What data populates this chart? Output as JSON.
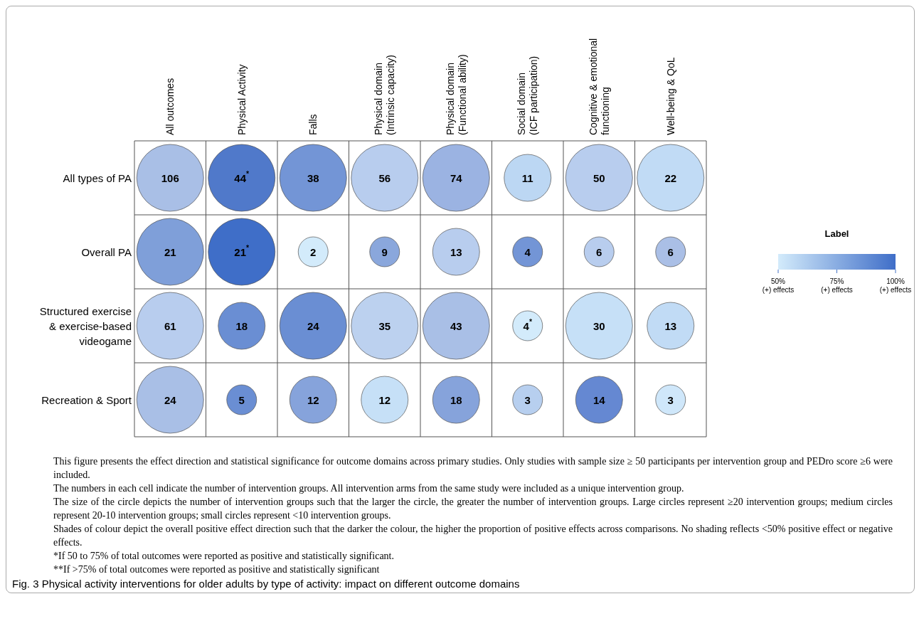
{
  "chart_data": {
    "type": "heatmap",
    "categories": [
      "All outcomes",
      "Physical Activity",
      "Falls",
      "Physical domain\n(Intrinsic capacity)",
      "Physical domain\n(Functional ability)",
      "Social domain\n(ICF participation)",
      "Cognitive & emotional\nfunctioning",
      "Well-being & QoL"
    ],
    "y_categories": [
      "All types of PA",
      "Overall PA",
      "Structured exercise\n& exercise-based\nvideogame",
      "Recreation & Sport"
    ],
    "cells": [
      [
        106,
        44,
        38,
        56,
        74,
        11,
        50,
        22
      ],
      [
        21,
        21,
        2,
        9,
        13,
        4,
        6,
        6
      ],
      [
        61,
        18,
        24,
        35,
        43,
        4,
        30,
        13
      ],
      [
        24,
        5,
        12,
        12,
        18,
        3,
        14,
        3
      ]
    ],
    "cell_labels": [
      [
        "106",
        "44$^{*}$",
        "38",
        "56",
        "74",
        "11",
        "50",
        "22"
      ],
      [
        "21",
        "21$^{*}$",
        "2",
        "9",
        "13",
        "4",
        "6",
        "6"
      ],
      [
        "61",
        "18",
        "24",
        "35",
        "43",
        "4$^{*}$",
        "30",
        "13"
      ],
      [
        "24",
        "5",
        "12",
        "12",
        "18",
        "3",
        "14",
        "3"
      ]
    ],
    "colors": [
      [
        "#a9bfe6",
        "#5079ca",
        "#7395d6",
        "#b8cdee",
        "#9bb3e2",
        "#bcd7f3",
        "#b8cdee",
        "#c1dbf5"
      ],
      [
        "#7f9fd9",
        "#3f6ec8",
        "#d3ebfb",
        "#8aa7dc",
        "#b8cdee",
        "#7395d6",
        "#b8cdee",
        "#aabfe6"
      ],
      [
        "#b8cdee",
        "#6a8ed3",
        "#6a8ed3",
        "#bcd1ef",
        "#a9bfe6",
        "#d3ebfb",
        "#c6e0f7",
        "#c1dbf5"
      ],
      [
        "#a9bfe6",
        "#6a8ed3",
        "#86a3db",
        "#c6e0f7",
        "#86a3db",
        "#b7cfef",
        "#6588d2",
        "#cfe7fa"
      ]
    ],
    "annotations": [
      "Label",
      "50%\n(+) effects",
      "75%\n(+) effects",
      "100%\n(+) effects",
      "This figure presents the effect direction and statistical significance for outcome domains across primary studies. Only studies with sample size ≥ 50 participants per intervention group and PEDro score ≥6 were included.",
      "The numbers in each cell indicate the number of intervention groups. All intervention arms from the same study were included as a unique intervention group.",
      "The size of the circle depicts the number of intervention groups such that the larger the circle, the greater the number of intervention groups. Large circles represent ≥20 intervention groups; medium circles represent 20-10 intervention groups; small circles represent <10 intervention groups.",
      "Shades of colour depict the overall positive effect direction such that the darker the colour, the higher the proportion of positive effects across comparisons. No shading reflects <50% positive effect or negative effects.",
      "*If 50 to 75% of total outcomes were reported as positive and statistically significant.",
      "**If >75% of total outcomes were reported as positive and statistically significant",
      "Fig. 3 Physical activity interventions for older adults by type of activity: impact on different outcome domains"
    ]
  }
}
